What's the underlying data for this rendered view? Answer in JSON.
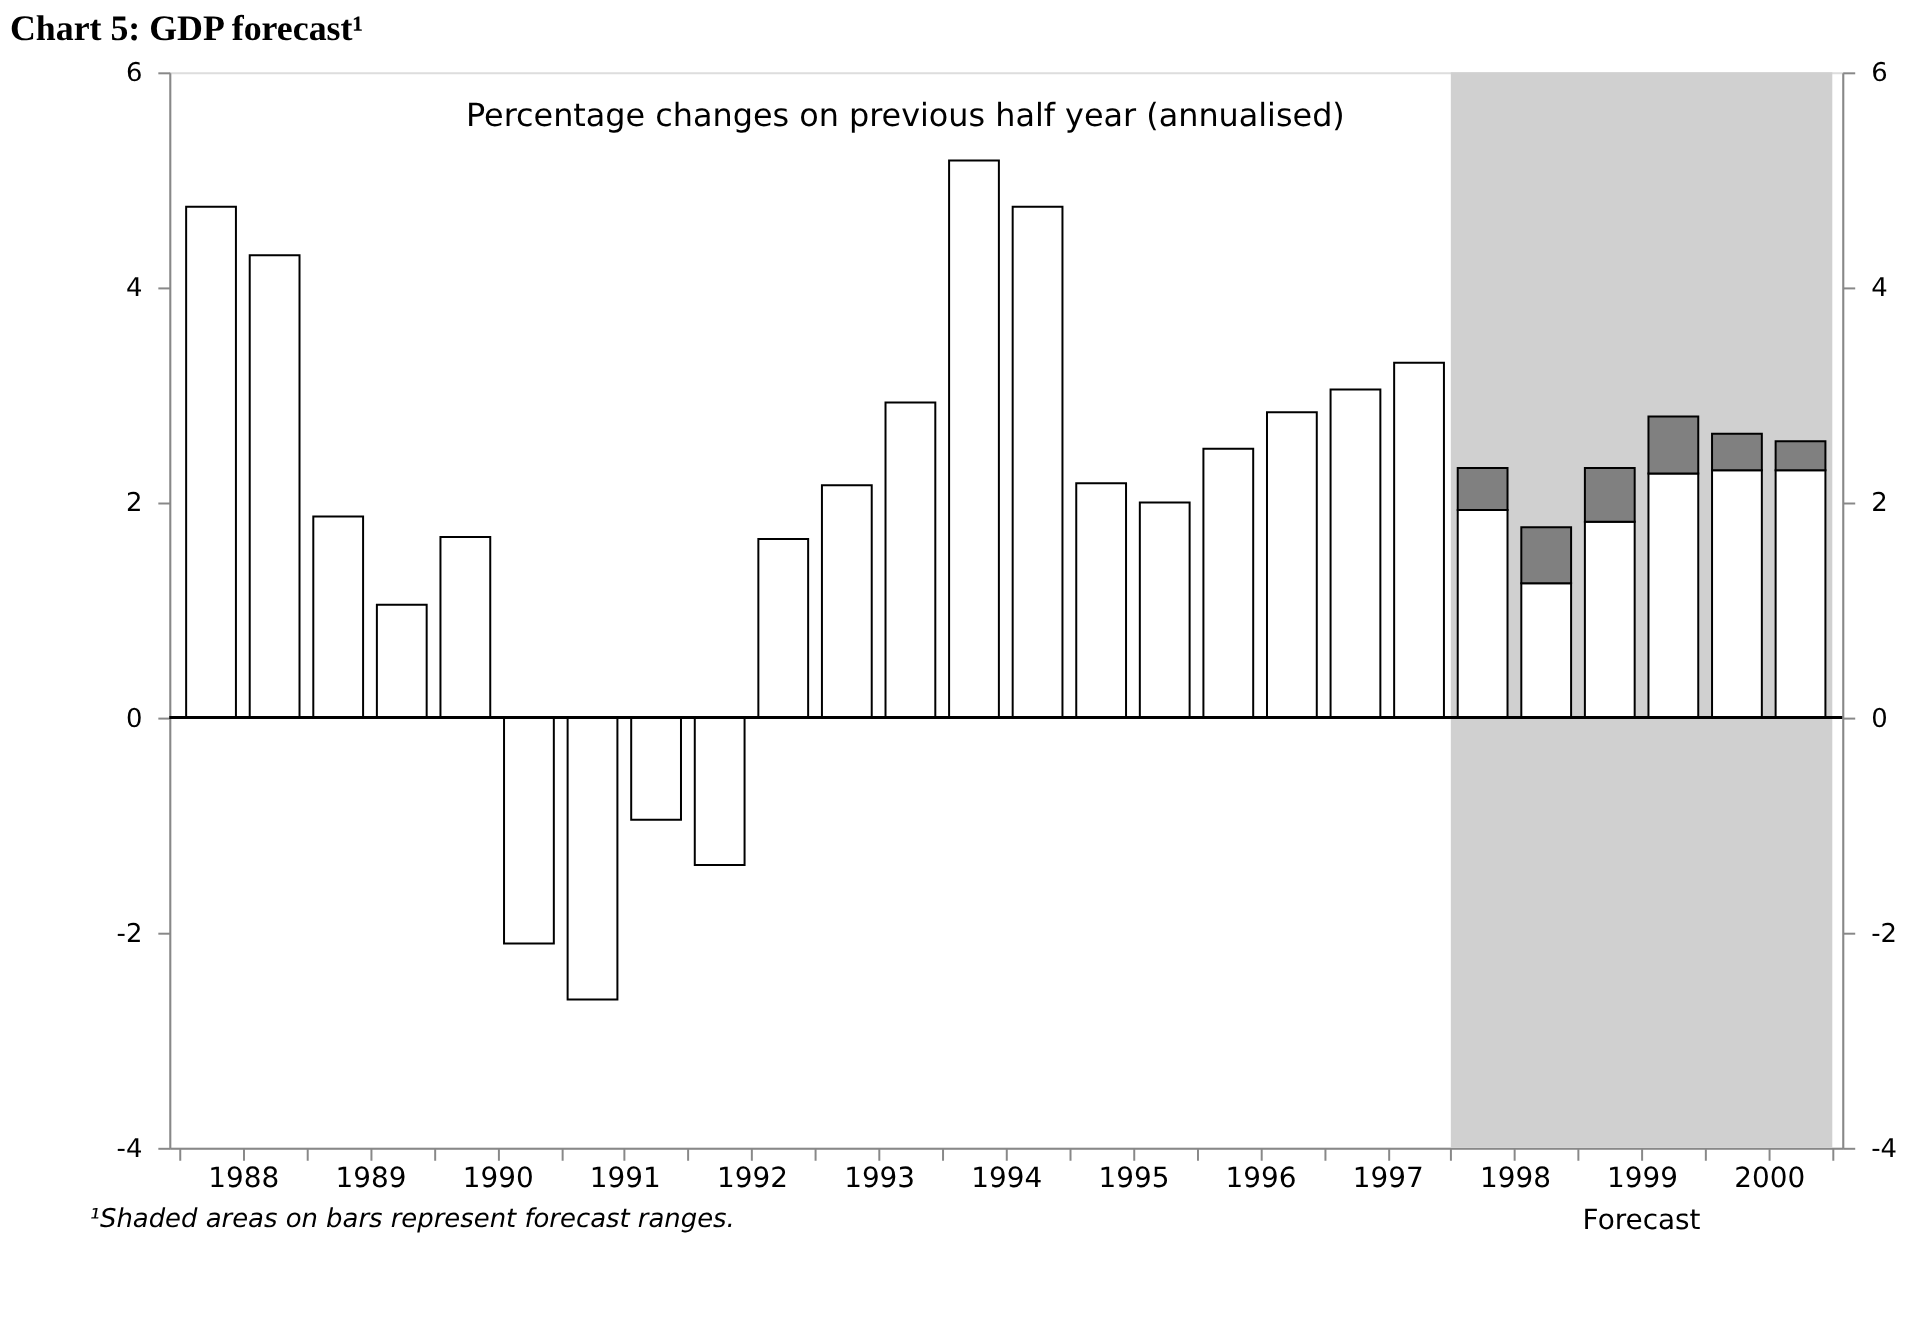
{
  "chart_data": {
    "type": "bar",
    "title": "Chart 5: GDP forecast¹",
    "stacked": true,
    "x": [
      1987.75,
      1988.25,
      1988.75,
      1989.25,
      1989.75,
      1990.25,
      1990.75,
      1991.25,
      1991.75,
      1992.25,
      1992.75,
      1993.25,
      1993.75,
      1994.25,
      1994.75,
      1995.25,
      1995.75,
      1996.25,
      1996.75,
      1997.25,
      1997.75,
      1998.25,
      1998.75,
      1999.25,
      1999.75,
      2000.25
    ],
    "series": [
      {
        "color": "#ffffff",
        "values": [
          4.75,
          4.3,
          1.87,
          1.05,
          1.68,
          -2.1,
          -2.62,
          -0.95,
          -1.37,
          1.66,
          2.16,
          2.93,
          5.18,
          4.75,
          2.18,
          2.0,
          2.5,
          2.84,
          3.05,
          3.3,
          1.93,
          1.25,
          1.82,
          2.27,
          2.3,
          2.3
        ]
      },
      {
        "color": "#808080",
        "values": [
          null,
          null,
          null,
          null,
          null,
          null,
          null,
          null,
          null,
          null,
          null,
          null,
          null,
          null,
          null,
          null,
          null,
          null,
          null,
          null,
          0.39,
          0.52,
          0.5,
          0.53,
          0.34,
          0.27
        ]
      }
    ],
    "xlim": [
      1987.5,
      2000.5
    ],
    "xticks": [
      {
        "value": 1987.5,
        "label": null
      },
      1988,
      {
        "value": 1988.5,
        "label": null
      },
      1989,
      {
        "value": 1989.5,
        "label": null
      },
      1990,
      {
        "value": 1990.5,
        "label": null
      },
      1991,
      {
        "value": 1991.5,
        "label": null
      },
      1992,
      {
        "value": 1992.5,
        "label": null
      },
      1993,
      {
        "value": 1993.5,
        "label": null
      },
      1994,
      {
        "value": 1994.5,
        "label": null
      },
      1995,
      {
        "value": 1995.5,
        "label": null
      },
      1996,
      {
        "value": 1996.5,
        "label": null
      },
      1997,
      {
        "value": 1997.5,
        "label": null
      },
      1998,
      {
        "value": 1998.5,
        "label": null
      },
      1999,
      {
        "value": 1999.5,
        "label": null
      },
      2000,
      {
        "value": 2000.5,
        "label": null
      }
    ],
    "ylim": [
      -4,
      6
    ],
    "yticks": [
      -4,
      -2,
      0,
      2,
      4,
      6
    ],
    "y2lim": [
      -4,
      6
    ],
    "y2ticks": [
      -4,
      -2,
      0,
      2,
      4,
      6
    ],
    "bands": [
      {
        "axis": "x",
        "from": 1997.5,
        "to": 2000.5,
        "label": "Forecast",
        "color": "#d0d0d0"
      }
    ],
    "ref_lines": [
      {
        "axis": "y",
        "value": 0
      }
    ],
    "annotations": [
      "Percentage changes on previous half year (annualised)",
      "¹Shaded areas on bars represent forecast ranges."
    ],
    "grid": false
  }
}
